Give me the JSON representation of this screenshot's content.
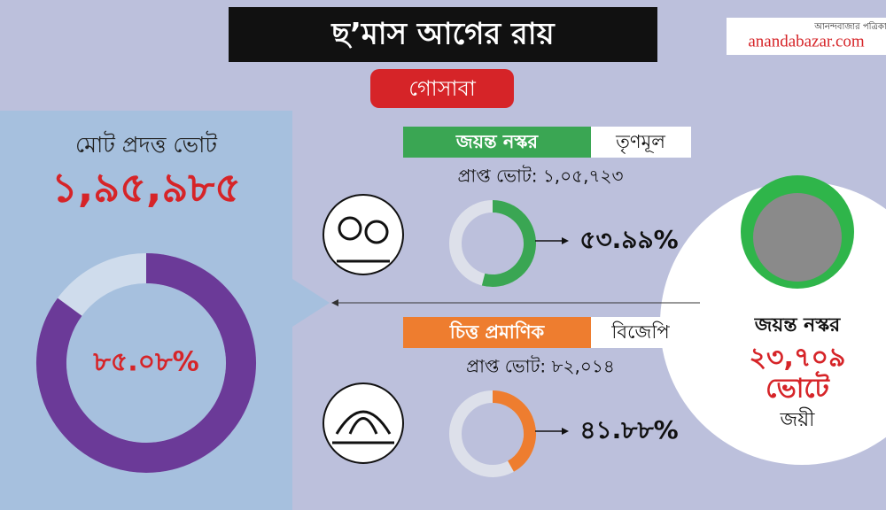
{
  "header": {
    "title": "ছ’মাস আগের রায়",
    "subtitle": "গোসাবা",
    "brand_small": "আনন্দবাজার পত্রিকা",
    "brand": "anandabazar.com"
  },
  "turnout": {
    "label": "মোট প্রদত্ত ভোট",
    "total": "১,৯৫,৯৮৫",
    "value": 85.08,
    "value_label": "৮৫.০৮%",
    "color": "#6b3a98"
  },
  "candidates": [
    {
      "name": "জয়ন্ত নস্কর",
      "party": "তৃণমূল",
      "votes_label": "প্রাপ্ত ভোট: ১,০৫,৭২৩",
      "value": 53.99,
      "value_label": "৫৩.৯৯%",
      "color": "#3aa653"
    },
    {
      "name": "চিত্ত প্রমাণিক",
      "party": "বিজেপি",
      "votes_label": "প্রাপ্ত ভোট: ৮২,০১৪",
      "value": 41.88,
      "value_label": "৪১.৮৮%",
      "color": "#ee7d2f"
    }
  ],
  "winner": {
    "name": "জয়ন্ত নস্কর",
    "margin": "২৩,৭০৯",
    "suffix": "ভোটে",
    "result": "জয়ী"
  }
}
